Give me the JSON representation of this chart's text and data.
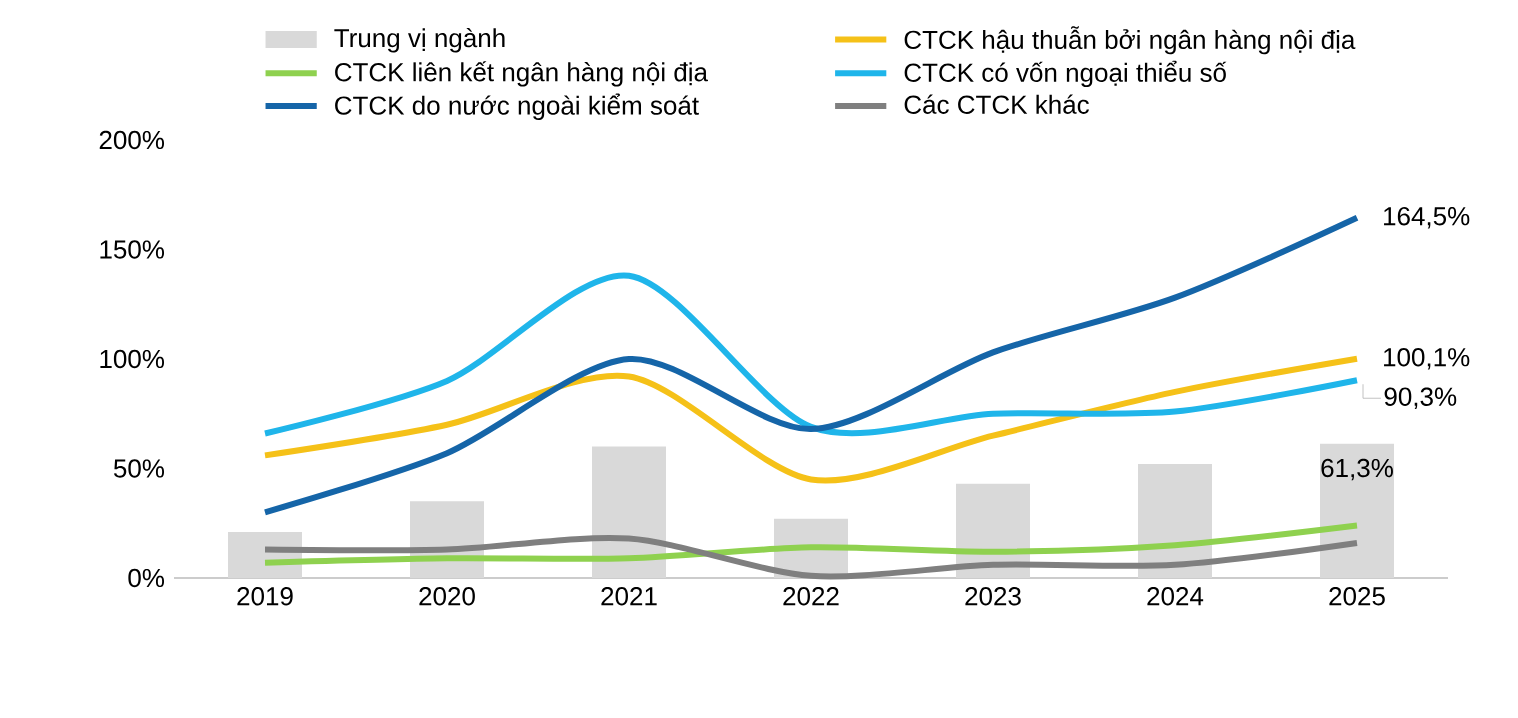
{
  "chart_data": {
    "type": "line",
    "categories": [
      "2019",
      "2020",
      "2021",
      "2022",
      "2023",
      "2024",
      "2025"
    ],
    "series": [
      {
        "name": "Trung vị ngành",
        "type": "bar",
        "color": "#d9d9d9",
        "values": [
          21,
          35,
          60,
          27,
          43,
          52,
          61.3
        ],
        "value_labels": [
          null,
          null,
          null,
          null,
          null,
          null,
          "61,3%"
        ]
      },
      {
        "name": "CTCK hậu thuẫn bởi ngân hàng nội địa",
        "color": "#f5c118",
        "values": [
          56,
          70,
          92,
          45,
          65,
          85,
          100.1
        ],
        "value_labels": [
          null,
          null,
          null,
          null,
          null,
          null,
          "100,1%"
        ]
      },
      {
        "name": "CTCK liên kết ngân hàng nội địa",
        "color": "#8fd14f",
        "values": [
          7,
          9,
          9,
          14,
          12,
          15,
          24
        ]
      },
      {
        "name": "CTCK có vốn ngoại thiểu số",
        "color": "#1fb5ea",
        "values": [
          66,
          90,
          138,
          69,
          75,
          76,
          90.3
        ],
        "value_labels": [
          null,
          null,
          null,
          null,
          null,
          null,
          "90,3%"
        ]
      },
      {
        "name": "CTCK do nước ngoài kiểm soát",
        "color": "#1565a8",
        "values": [
          30,
          57,
          100,
          68,
          103,
          128,
          164.5
        ],
        "value_labels": [
          null,
          null,
          null,
          null,
          null,
          null,
          "164,5%"
        ]
      },
      {
        "name": "Các CTCK khác",
        "color": "#7f7f7f",
        "values": [
          13,
          13,
          18,
          1,
          6,
          6,
          16
        ]
      }
    ],
    "ylim": [
      0,
      200
    ],
    "yticks": [
      {
        "value": 0,
        "label": "0%"
      },
      {
        "value": 50,
        "label": "50%"
      },
      {
        "value": 100,
        "label": "100%"
      },
      {
        "value": 150,
        "label": "150%"
      },
      {
        "value": 200,
        "label": "200%"
      }
    ],
    "legend": "top",
    "grid": false,
    "marker": "none",
    "line_style": "solid"
  }
}
